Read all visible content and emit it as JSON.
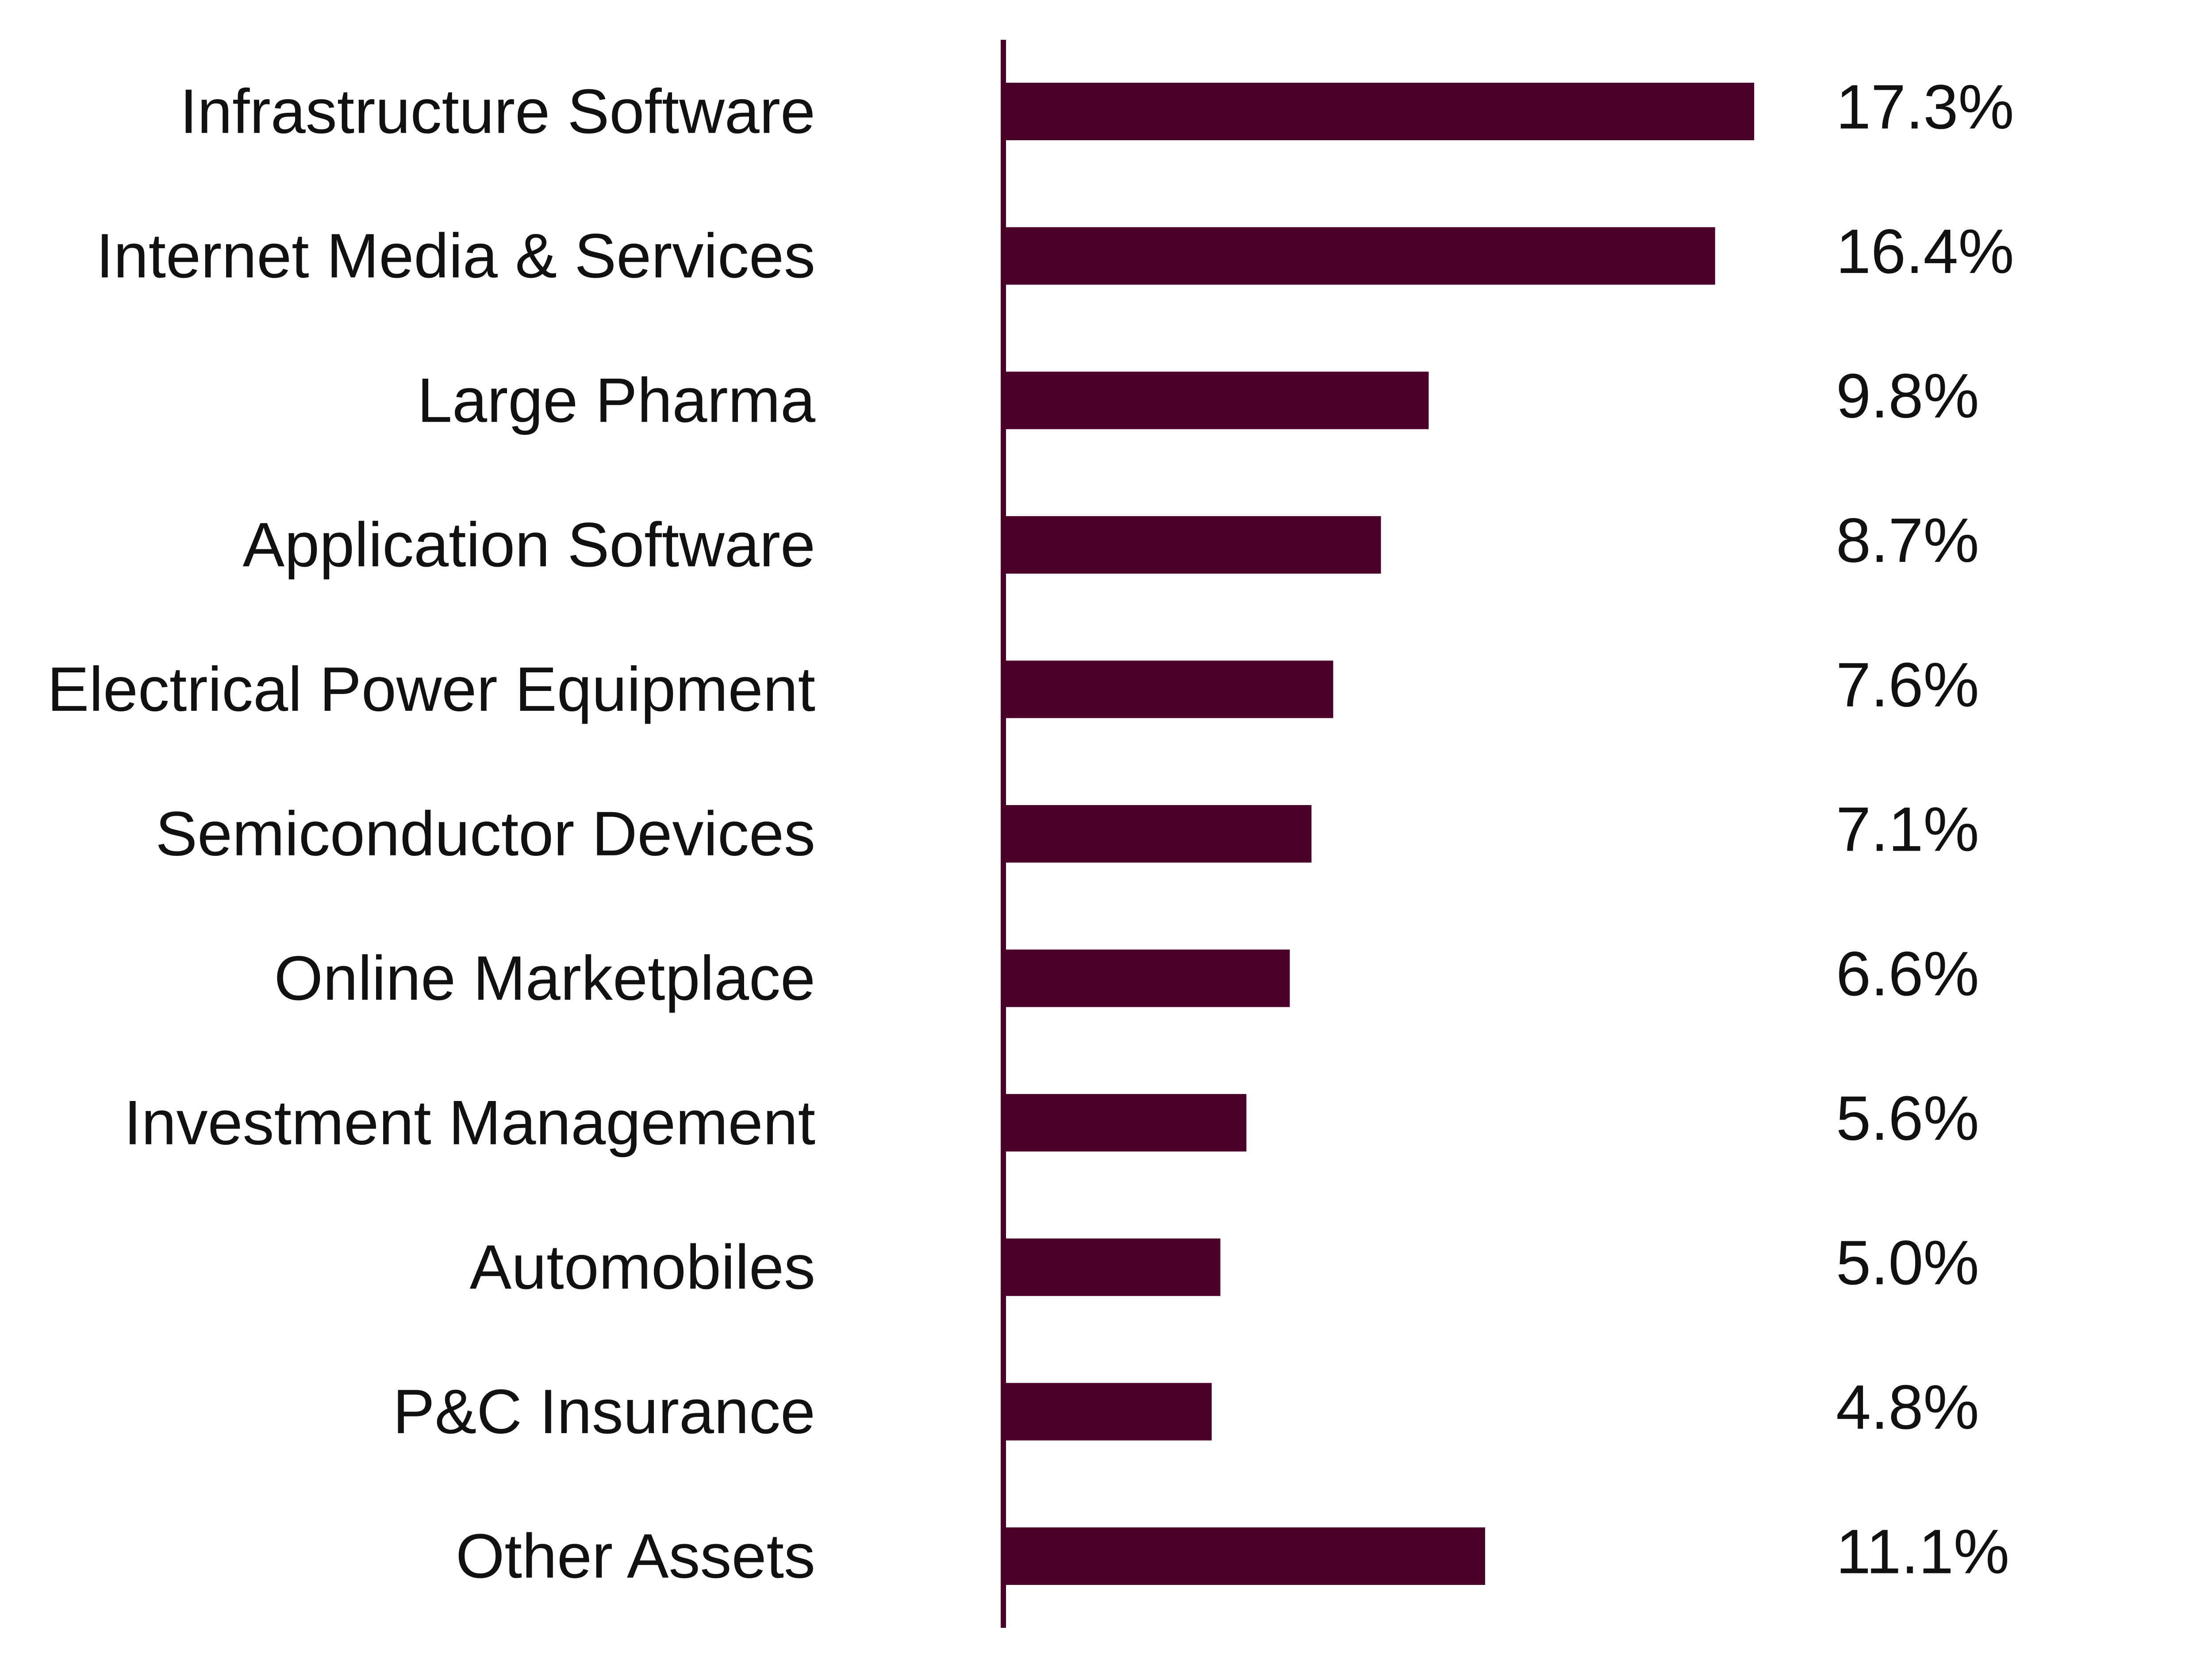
{
  "colors": {
    "bar": "#4b0029",
    "axis": "#4b0029",
    "text": "#111111",
    "background": "#ffffff"
  },
  "chart_data": {
    "type": "bar",
    "orientation": "horizontal",
    "title": "",
    "xlabel": "",
    "ylabel": "",
    "xlim": [
      0,
      20
    ],
    "grid": false,
    "categories": [
      "Infrastructure Software",
      "Internet Media & Services",
      "Large Pharma",
      "Application Software",
      "Electrical Power Equipment",
      "Semiconductor Devices",
      "Online Marketplace",
      "Investment Management ",
      "Automobiles",
      "P&C Insurance",
      "Other Assets"
    ],
    "values": [
      17.3,
      16.4,
      9.8,
      8.7,
      7.6,
      7.1,
      6.6,
      5.6,
      5.0,
      4.8,
      11.1
    ],
    "value_labels": [
      "17.3%",
      "16.4%",
      "9.8%",
      "8.7%",
      "7.6%",
      "7.1%",
      "6.6%",
      "5.6%",
      "5.0%",
      "4.8%",
      "11.1%"
    ]
  }
}
